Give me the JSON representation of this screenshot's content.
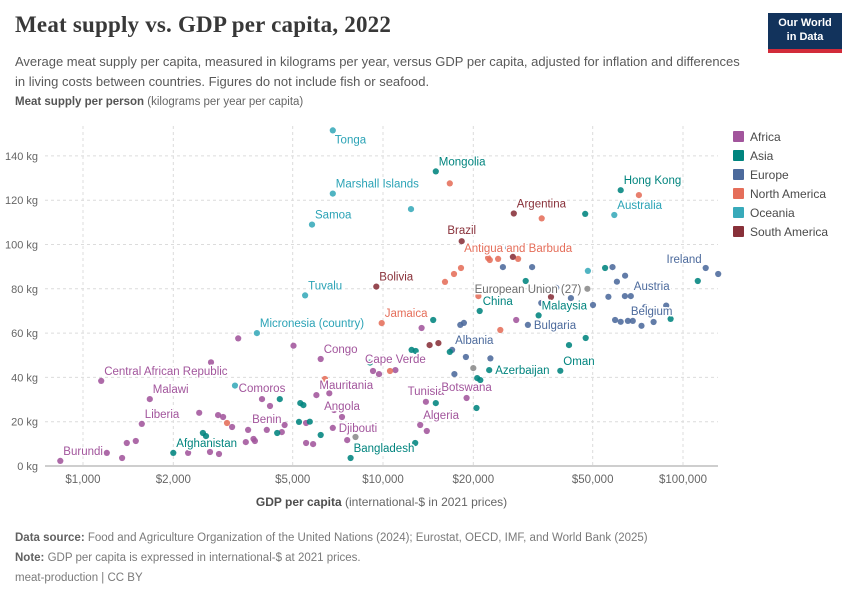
{
  "header": {
    "title": "Meat supply vs. GDP per capita, 2022",
    "subtitle": "Average meat supply per capita, measured in kilograms per year, versus GDP per capita, adjusted for inflation and differences in living costs between countries. Figures do not include fish or seafood.",
    "logo": {
      "line1": "Our World",
      "line2": "in Data",
      "bg": "#12335c",
      "bar": "#d22b3a"
    }
  },
  "axes": {
    "y_title_bold": "Meat supply per person",
    "y_title_rest": " (kilograms per year per capita)",
    "x_title_bold": "GDP per capita",
    "x_title_rest": " (international-$ in 2021 prices)"
  },
  "legend": {
    "items": [
      {
        "label": "Africa",
        "color": "#a2559c"
      },
      {
        "label": "Asia",
        "color": "#00847e"
      },
      {
        "label": "Europe",
        "color": "#4c6a9c"
      },
      {
        "label": "North America",
        "color": "#e56e5a"
      },
      {
        "label": "Oceania",
        "color": "#38aaba"
      },
      {
        "label": "South America",
        "color": "#883039"
      }
    ]
  },
  "chart_data": {
    "type": "scatter",
    "x_scale": "log",
    "xlabel": "GDP per capita (international-$ in 2021 prices)",
    "ylabel": "Meat supply per person (kilograms per year per capita)",
    "xlim": [
      800,
      140000
    ],
    "ylim": [
      0,
      155
    ],
    "grid": true,
    "x_ticks": [
      {
        "value": 1000,
        "label": "$1,000"
      },
      {
        "value": 2000,
        "label": "$2,000"
      },
      {
        "value": 5000,
        "label": "$5,000"
      },
      {
        "value": 10000,
        "label": "$10,000"
      },
      {
        "value": 20000,
        "label": "$20,000"
      },
      {
        "value": 50000,
        "label": "$50,000"
      },
      {
        "value": 100000,
        "label": "$100,000"
      }
    ],
    "y_ticks": [
      {
        "value": 0,
        "label": "0 kg"
      },
      {
        "value": 20,
        "label": "20 kg"
      },
      {
        "value": 40,
        "label": "40 kg"
      },
      {
        "value": 60,
        "label": "60 kg"
      },
      {
        "value": 80,
        "label": "80 kg"
      },
      {
        "value": 100,
        "label": "100 kg"
      },
      {
        "value": 120,
        "label": "120 kg"
      },
      {
        "value": 140,
        "label": "140 kg"
      }
    ],
    "continent_colors": {
      "africa": "#a2559c",
      "asia": "#00847e",
      "europe": "#4c6a9c",
      "north-america": "#e56e5a",
      "oceania": "#38aaba",
      "south-america": "#883039",
      "other": "#8a8a8a"
    },
    "label_colors": {
      "africa": "#a2559c",
      "asia": "#00847e",
      "europe": "#4c6a9c",
      "north-america": "#e56e5a",
      "oceania": "#2ba3b6",
      "south-america": "#883039",
      "other": "#6e6e6e"
    },
    "points": [
      {
        "n": "Tonga",
        "g": 6800,
        "k": 151.5,
        "c": "oceania",
        "p": "below-right"
      },
      {
        "n": "Mongolia",
        "g": 15000,
        "k": 133,
        "c": "asia",
        "p": "above-right"
      },
      {
        "n": "Marshall Islands",
        "g": 6800,
        "k": 123,
        "c": "oceania",
        "p": "above-right"
      },
      {
        "n": "Hong Kong",
        "g": 62000,
        "k": 124.5,
        "c": "asia",
        "p": "above-right"
      },
      {
        "n": "Samoa",
        "g": 5800,
        "k": 109,
        "c": "oceania",
        "p": "above-right"
      },
      {
        "n": "Australia",
        "g": 59000,
        "k": 113.3,
        "c": "oceania",
        "p": "above-right"
      },
      {
        "n": "Argentina",
        "g": 27300,
        "k": 114,
        "c": "south-america",
        "p": "above-right"
      },
      {
        "n": "Brazil",
        "g": 18300,
        "k": 101.5,
        "c": "south-america",
        "p": "above"
      },
      {
        "n": "Antigua and Barbuda",
        "g": 28200,
        "k": 93.5,
        "c": "north-america",
        "p": "above"
      },
      {
        "n": "Ireland",
        "g": 119000,
        "k": 89.4,
        "c": "europe",
        "p": "left-above"
      },
      {
        "n": "Bolivia",
        "g": 9500,
        "k": 81,
        "c": "south-america",
        "p": "above-right"
      },
      {
        "n": "Tuvalu",
        "g": 5500,
        "k": 77,
        "c": "oceania",
        "p": "above-right"
      },
      {
        "n": "European Union (27)",
        "g": 48000,
        "k": 80,
        "c": "other",
        "p": "left"
      },
      {
        "n": "Austria",
        "g": 67000,
        "k": 76.7,
        "c": "europe",
        "p": "above-right"
      },
      {
        "n": "Micronesia (country)",
        "g": 3800,
        "k": 60,
        "c": "oceania",
        "p": "above-right"
      },
      {
        "n": "Jamaica",
        "g": 9900,
        "k": 64.5,
        "c": "north-america",
        "p": "above-right"
      },
      {
        "n": "Belgium",
        "g": 65500,
        "k": 65.5,
        "c": "europe",
        "p": "above-right"
      },
      {
        "n": "Bulgaria",
        "g": 30400,
        "k": 63.7,
        "c": "europe",
        "p": "right"
      },
      {
        "n": "Malaysia",
        "g": 33000,
        "k": 68,
        "c": "asia",
        "p": "above-right"
      },
      {
        "n": "China",
        "g": 21000,
        "k": 70,
        "c": "asia",
        "p": "above-right"
      },
      {
        "n": "Albania",
        "g": 17000,
        "k": 52.4,
        "c": "europe",
        "p": "above-right"
      },
      {
        "n": "Congo",
        "g": 6200,
        "k": 48.3,
        "c": "africa",
        "p": "above-right"
      },
      {
        "n": "Cape Verde",
        "g": 11000,
        "k": 43.3,
        "c": "africa",
        "p": "above"
      },
      {
        "n": "Azerbaijan",
        "g": 22600,
        "k": 43.3,
        "c": "asia",
        "p": "right"
      },
      {
        "n": "Oman",
        "g": 39000,
        "k": 43,
        "c": "asia",
        "p": "above-right"
      },
      {
        "n": "Central African Republic",
        "g": 1150,
        "k": 38.4,
        "c": "africa",
        "p": "above-right"
      },
      {
        "n": "Malawi",
        "g": 1670,
        "k": 30.2,
        "c": "africa",
        "p": "above-right"
      },
      {
        "n": "Mauritania",
        "g": 6000,
        "k": 32,
        "c": "africa",
        "p": "above-right"
      },
      {
        "n": "Comoros",
        "g": 3950,
        "k": 30.2,
        "c": "africa",
        "p": "above"
      },
      {
        "n": "Angola",
        "g": 7300,
        "k": 22.1,
        "c": "africa",
        "p": "above"
      },
      {
        "n": "Tunisia",
        "g": 13900,
        "k": 29,
        "c": "africa",
        "p": "above"
      },
      {
        "n": "Botswana",
        "g": 19000,
        "k": 30.7,
        "c": "africa",
        "p": "above"
      },
      {
        "n": "Liberia",
        "g": 1570,
        "k": 19,
        "c": "africa",
        "p": "above-right"
      },
      {
        "n": "Benin",
        "g": 4100,
        "k": 16.3,
        "c": "africa",
        "p": "above"
      },
      {
        "n": "Djibouti",
        "g": 6800,
        "k": 17.2,
        "c": "africa",
        "p": "right"
      },
      {
        "n": "Algeria",
        "g": 13300,
        "k": 18.5,
        "c": "africa",
        "p": "above-right"
      },
      {
        "n": "Afghanistan",
        "g": 2000,
        "k": 5.9,
        "c": "asia",
        "p": "above-right"
      },
      {
        "n": "Bangladesh",
        "g": 7800,
        "k": 3.6,
        "c": "asia",
        "p": "above-right"
      },
      {
        "n": "Burundi",
        "g": 840,
        "k": 2.3,
        "c": "africa",
        "p": "above-right"
      },
      {
        "g": 1400,
        "k": 10.4,
        "c": "africa"
      },
      {
        "g": 1500,
        "k": 11.3,
        "c": "africa"
      },
      {
        "g": 1200,
        "k": 5.9,
        "c": "africa"
      },
      {
        "g": 1350,
        "k": 3.6,
        "c": "africa"
      },
      {
        "g": 1110,
        "k": 5.7,
        "c": "africa"
      },
      {
        "g": 2240,
        "k": 5.9,
        "c": "africa"
      },
      {
        "g": 2440,
        "k": 24,
        "c": "africa"
      },
      {
        "g": 2820,
        "k": 23,
        "c": "africa"
      },
      {
        "g": 2930,
        "k": 22.1,
        "c": "africa"
      },
      {
        "g": 3140,
        "k": 17.6,
        "c": "africa"
      },
      {
        "g": 3550,
        "k": 16.3,
        "c": "africa"
      },
      {
        "g": 3490,
        "k": 10.8,
        "c": "africa"
      },
      {
        "g": 3740,
        "k": 11.3,
        "c": "africa"
      },
      {
        "g": 2650,
        "k": 6.3,
        "c": "africa"
      },
      {
        "g": 2840,
        "k": 5.4,
        "c": "africa"
      },
      {
        "g": 3700,
        "k": 12.2,
        "c": "africa"
      },
      {
        "g": 4600,
        "k": 15.3,
        "c": "africa"
      },
      {
        "g": 4700,
        "k": 18.5,
        "c": "africa"
      },
      {
        "g": 5540,
        "k": 19.4,
        "c": "africa"
      },
      {
        "g": 5540,
        "k": 10.4,
        "c": "africa"
      },
      {
        "g": 5850,
        "k": 9.9,
        "c": "africa"
      },
      {
        "g": 7600,
        "k": 11.7,
        "c": "africa"
      },
      {
        "g": 14000,
        "k": 15.8,
        "c": "africa"
      },
      {
        "g": 2670,
        "k": 46.8,
        "c": "africa"
      },
      {
        "g": 3290,
        "k": 57.6,
        "c": "africa"
      },
      {
        "g": 5030,
        "k": 54.3,
        "c": "africa"
      },
      {
        "g": 6620,
        "k": 32.8,
        "c": "africa"
      },
      {
        "g": 6870,
        "k": 25.3,
        "c": "africa"
      },
      {
        "g": 4200,
        "k": 27.1,
        "c": "africa"
      },
      {
        "g": 9260,
        "k": 42.9,
        "c": "africa"
      },
      {
        "g": 9700,
        "k": 41.5,
        "c": "africa"
      },
      {
        "g": 13450,
        "k": 62.3,
        "c": "africa"
      },
      {
        "g": 27800,
        "k": 65.9,
        "c": "africa"
      },
      {
        "g": 2510,
        "k": 14.9,
        "c": "asia"
      },
      {
        "g": 2570,
        "k": 13.5,
        "c": "asia"
      },
      {
        "g": 4440,
        "k": 14.9,
        "c": "asia"
      },
      {
        "g": 5300,
        "k": 28.4,
        "c": "asia"
      },
      {
        "g": 5430,
        "k": 27.5,
        "c": "asia"
      },
      {
        "g": 5250,
        "k": 19.9,
        "c": "asia"
      },
      {
        "g": 6200,
        "k": 14,
        "c": "asia"
      },
      {
        "g": 12800,
        "k": 10.4,
        "c": "asia"
      },
      {
        "g": 5700,
        "k": 20,
        "c": "asia"
      },
      {
        "g": 4530,
        "k": 30.2,
        "c": "asia"
      },
      {
        "g": 9050,
        "k": 46.7,
        "c": "asia"
      },
      {
        "g": 12450,
        "k": 52.4,
        "c": "asia"
      },
      {
        "g": 12850,
        "k": 51.9,
        "c": "asia"
      },
      {
        "g": 14700,
        "k": 65.9,
        "c": "asia"
      },
      {
        "g": 16700,
        "k": 51.5,
        "c": "asia"
      },
      {
        "g": 20600,
        "k": 39.7,
        "c": "asia"
      },
      {
        "g": 21100,
        "k": 38.8,
        "c": "asia"
      },
      {
        "g": 20500,
        "k": 26.2,
        "c": "asia"
      },
      {
        "g": 15000,
        "k": 28.4,
        "c": "asia"
      },
      {
        "g": 29900,
        "k": 83.5,
        "c": "asia"
      },
      {
        "g": 41700,
        "k": 54.6,
        "c": "asia"
      },
      {
        "g": 47400,
        "k": 57.8,
        "c": "asia"
      },
      {
        "g": 47200,
        "k": 113.8,
        "c": "asia"
      },
      {
        "g": 55000,
        "k": 89.4,
        "c": "asia"
      },
      {
        "g": 90900,
        "k": 66.4,
        "c": "asia"
      },
      {
        "g": 112000,
        "k": 83.5,
        "c": "asia"
      },
      {
        "g": 18600,
        "k": 64.6,
        "c": "europe"
      },
      {
        "g": 18100,
        "k": 63.7,
        "c": "europe"
      },
      {
        "g": 18900,
        "k": 49.2,
        "c": "europe"
      },
      {
        "g": 22800,
        "k": 48.6,
        "c": "europe"
      },
      {
        "g": 17300,
        "k": 41.5,
        "c": "europe"
      },
      {
        "g": 25100,
        "k": 89.8,
        "c": "europe"
      },
      {
        "g": 26100,
        "k": 98.4,
        "c": "europe"
      },
      {
        "g": 31400,
        "k": 89.8,
        "c": "europe"
      },
      {
        "g": 33700,
        "k": 73.6,
        "c": "europe"
      },
      {
        "g": 37800,
        "k": 80.4,
        "c": "europe"
      },
      {
        "g": 42300,
        "k": 75.8,
        "c": "europe"
      },
      {
        "g": 43300,
        "k": 72.7,
        "c": "europe"
      },
      {
        "g": 50100,
        "k": 72.7,
        "c": "europe"
      },
      {
        "g": 56400,
        "k": 76.4,
        "c": "europe"
      },
      {
        "g": 60200,
        "k": 83.2,
        "c": "europe"
      },
      {
        "g": 64100,
        "k": 85.9,
        "c": "europe"
      },
      {
        "g": 58200,
        "k": 89.8,
        "c": "europe"
      },
      {
        "g": 64000,
        "k": 76.7,
        "c": "europe"
      },
      {
        "g": 59400,
        "k": 65.9,
        "c": "europe"
      },
      {
        "g": 62000,
        "k": 65.1,
        "c": "europe"
      },
      {
        "g": 68000,
        "k": 65.5,
        "c": "europe"
      },
      {
        "g": 72700,
        "k": 63.3,
        "c": "europe"
      },
      {
        "g": 79800,
        "k": 65,
        "c": "europe"
      },
      {
        "g": 74900,
        "k": 71.8,
        "c": "europe"
      },
      {
        "g": 87900,
        "k": 72.4,
        "c": "europe"
      },
      {
        "g": 131000,
        "k": 86.7,
        "c": "europe"
      },
      {
        "g": 3020,
        "k": 19.4,
        "c": "north-america"
      },
      {
        "g": 6400,
        "k": 39.3,
        "c": "north-america"
      },
      {
        "g": 10550,
        "k": 42.9,
        "c": "north-america"
      },
      {
        "g": 16100,
        "k": 83.1,
        "c": "north-america"
      },
      {
        "g": 17250,
        "k": 86.7,
        "c": "north-america"
      },
      {
        "g": 18200,
        "k": 89.4,
        "c": "north-america"
      },
      {
        "g": 22400,
        "k": 93.9,
        "c": "north-america"
      },
      {
        "g": 22700,
        "k": 93,
        "c": "north-america"
      },
      {
        "g": 24200,
        "k": 93.5,
        "c": "north-america"
      },
      {
        "g": 20800,
        "k": 76.7,
        "c": "north-america"
      },
      {
        "g": 24600,
        "k": 61.4,
        "c": "north-america"
      },
      {
        "g": 33800,
        "k": 111.8,
        "c": "north-america"
      },
      {
        "g": 16700,
        "k": 127.6,
        "c": "north-america"
      },
      {
        "g": 71300,
        "k": 122.3,
        "c": "north-america"
      },
      {
        "g": 14300,
        "k": 54.6,
        "c": "south-america"
      },
      {
        "g": 15300,
        "k": 55.5,
        "c": "south-america"
      },
      {
        "g": 27100,
        "k": 94.4,
        "c": "south-america"
      },
      {
        "g": 36300,
        "k": 76.3,
        "c": "south-america"
      },
      {
        "g": 3210,
        "k": 36.3,
        "c": "oceania"
      },
      {
        "g": 12400,
        "k": 116,
        "c": "oceania"
      },
      {
        "g": 48200,
        "k": 88.1,
        "c": "oceania"
      },
      {
        "g": 20000,
        "k": 44.2,
        "c": "other"
      },
      {
        "g": 8100,
        "k": 13.1,
        "c": "other"
      }
    ]
  },
  "footer": {
    "source_bold": "Data source:",
    "source_rest": " Food and Agriculture Organization of the United Nations (2024); Eurostat, OECD, IMF, and World Bank (2025)",
    "note_bold": "Note:",
    "note_rest": " GDP per capita is expressed in international-$ at 2021 prices.",
    "license": "meat-production | CC BY"
  }
}
